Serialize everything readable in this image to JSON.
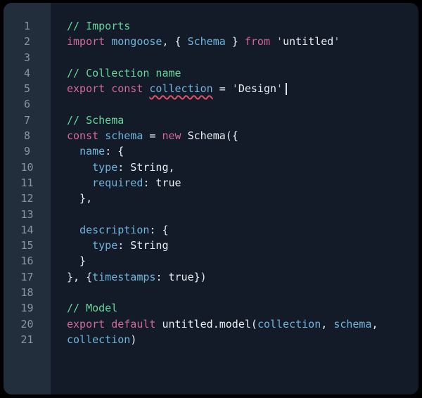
{
  "theme": {
    "page_bg": "#000000",
    "code_bg": "#121b27",
    "gutter_bg": "#232e3d",
    "line_number_color": "#8a95a4",
    "keyword_color": "#d2699e",
    "identifier_color": "#6fb5dc",
    "comment_color": "#63d79b",
    "plain_color": "#e8edf4",
    "quote_color": "#b6bfcb",
    "error_squiggle_color": "#e0506b",
    "caret_color": "#dfe5ec"
  },
  "editor": {
    "language": "javascript",
    "line_count": 21,
    "lines": [
      {
        "n": "1",
        "tokens": [
          [
            "c",
            "// Imports"
          ]
        ]
      },
      {
        "n": "2",
        "tokens": [
          [
            "k",
            "import"
          ],
          [
            "p",
            " "
          ],
          [
            "i",
            "mongoose"
          ],
          [
            "p",
            ", { "
          ],
          [
            "i",
            "Schema"
          ],
          [
            "p",
            " } "
          ],
          [
            "k",
            "from"
          ],
          [
            "p",
            " "
          ],
          [
            "q",
            "'"
          ],
          [
            "p",
            "untitled"
          ],
          [
            "q",
            "'"
          ]
        ]
      },
      {
        "n": "3",
        "tokens": []
      },
      {
        "n": "4",
        "tokens": [
          [
            "c",
            "// Collection name"
          ]
        ]
      },
      {
        "n": "5",
        "tokens": [
          [
            "k",
            "export"
          ],
          [
            "p",
            " "
          ],
          [
            "k",
            "const"
          ],
          [
            "p",
            " "
          ],
          [
            "e",
            "collection"
          ],
          [
            "p",
            " = "
          ],
          [
            "q",
            "'"
          ],
          [
            "p",
            "Design"
          ],
          [
            "q",
            "'"
          ],
          [
            "caret",
            ""
          ]
        ]
      },
      {
        "n": "6",
        "tokens": []
      },
      {
        "n": "7",
        "tokens": [
          [
            "c",
            "// Schema"
          ]
        ]
      },
      {
        "n": "8",
        "tokens": [
          [
            "k",
            "const"
          ],
          [
            "p",
            " "
          ],
          [
            "i",
            "schema"
          ],
          [
            "p",
            " = "
          ],
          [
            "k",
            "new"
          ],
          [
            "p",
            " Schema({"
          ]
        ]
      },
      {
        "n": "9",
        "tokens": [
          [
            "p",
            "  "
          ],
          [
            "i",
            "name"
          ],
          [
            "p",
            ": {"
          ]
        ]
      },
      {
        "n": "10",
        "tokens": [
          [
            "p",
            "    "
          ],
          [
            "i",
            "type"
          ],
          [
            "p",
            ": String,"
          ]
        ]
      },
      {
        "n": "11",
        "tokens": [
          [
            "p",
            "    "
          ],
          [
            "i",
            "required"
          ],
          [
            "p",
            ": true"
          ]
        ]
      },
      {
        "n": "12",
        "tokens": [
          [
            "p",
            "  },"
          ]
        ]
      },
      {
        "n": "13",
        "tokens": []
      },
      {
        "n": "14",
        "tokens": [
          [
            "p",
            "  "
          ],
          [
            "i",
            "description"
          ],
          [
            "p",
            ": {"
          ]
        ]
      },
      {
        "n": "15",
        "tokens": [
          [
            "p",
            "    "
          ],
          [
            "i",
            "type"
          ],
          [
            "p",
            ": String"
          ]
        ]
      },
      {
        "n": "16",
        "tokens": [
          [
            "p",
            "  }"
          ]
        ]
      },
      {
        "n": "17",
        "tokens": [
          [
            "p",
            "}, {"
          ],
          [
            "i",
            "timestamps"
          ],
          [
            "p",
            ": true})"
          ]
        ]
      },
      {
        "n": "18",
        "tokens": []
      },
      {
        "n": "19",
        "tokens": [
          [
            "c",
            "// Model"
          ]
        ]
      },
      {
        "n": "20",
        "tokens": [
          [
            "k",
            "export"
          ],
          [
            "p",
            " "
          ],
          [
            "k",
            "default"
          ],
          [
            "p",
            " untitled.model("
          ],
          [
            "i",
            "collection"
          ],
          [
            "p",
            ", "
          ],
          [
            "i",
            "schema"
          ],
          [
            "p",
            ","
          ]
        ]
      },
      {
        "n": "21",
        "tokens": [
          [
            "i",
            "collection"
          ],
          [
            "p",
            ")"
          ]
        ]
      }
    ]
  }
}
